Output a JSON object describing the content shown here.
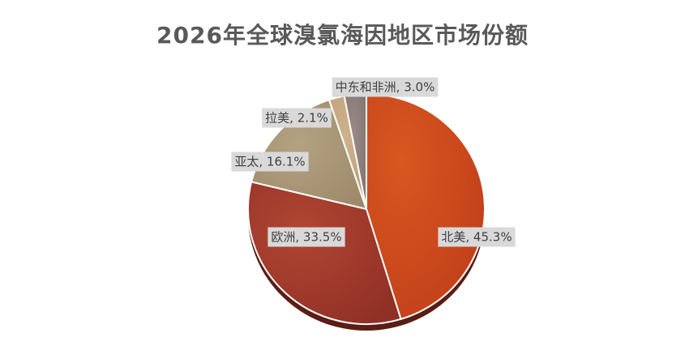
{
  "chart_data": {
    "type": "pie",
    "title": "2026年全球溴氯海因地区市场份额",
    "categories": [
      "北美",
      "欧洲",
      "亚太",
      "拉美",
      "中东和非洲"
    ],
    "values": [
      45.3,
      33.5,
      16.1,
      2.1,
      3.0
    ],
    "unit": "%",
    "data_labels": [
      "北美, 45.3%",
      "欧洲, 33.5%",
      "亚太, 16.1%",
      "拉美, 2.1%",
      "中东和非洲, 3.0%"
    ],
    "colors": [
      "#c9461a",
      "#a33a2a",
      "#a8957a",
      "#c7a982",
      "#8f7f7c"
    ],
    "legend": "none"
  }
}
